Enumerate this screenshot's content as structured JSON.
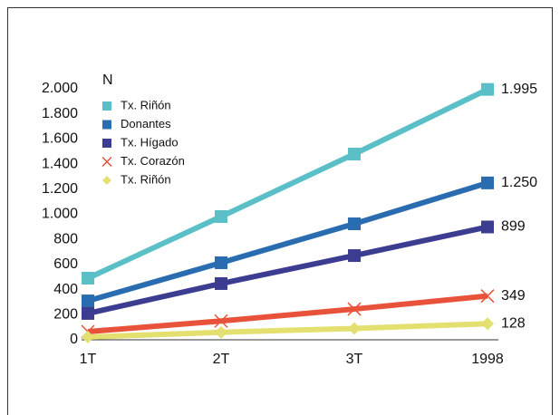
{
  "chart_data": {
    "type": "line",
    "y_label": "N",
    "categories": [
      "1T",
      "2T",
      "3T",
      "1998"
    ],
    "ylim": [
      0,
      2000
    ],
    "yticks": [
      0,
      200,
      400,
      600,
      800,
      {
        "value": 1000,
        "label": "1.000"
      },
      {
        "value": 1200,
        "label": "1.200"
      },
      {
        "value": 1400,
        "label": "1.400"
      },
      {
        "value": 1600,
        "label": "1.600"
      },
      {
        "value": 1800,
        "label": "1.800"
      },
      {
        "value": 2000,
        "label": "2.000"
      }
    ],
    "legend": "upper left",
    "series": [
      {
        "name": "Tx. Riñón",
        "color": "#5bbfc8",
        "marker": "square",
        "values": [
          491,
          982,
          1480,
          1995
        ],
        "value_labels": [
          null,
          null,
          null,
          "1.995"
        ]
      },
      {
        "name": "Donantes",
        "color": "#2a6cb0",
        "marker": "square",
        "values": [
          310,
          614,
          924,
          1250
        ],
        "value_labels": [
          null,
          null,
          null,
          "1.250"
        ]
      },
      {
        "name": "Tx. Hígado",
        "color": "#3c3c90",
        "marker": "square",
        "values": [
          210,
          448,
          671,
          899
        ],
        "value_labels": [
          null,
          null,
          null,
          "899"
        ]
      },
      {
        "name": "Tx. Corazón",
        "color": "#e8523a",
        "marker": "x",
        "values": [
          65,
          150,
          245,
          349
        ],
        "value_labels": [
          null,
          null,
          null,
          "349"
        ]
      },
      {
        "name": "Tx. Riñón",
        "color": "#e3e070",
        "marker": "diamond",
        "values": [
          22,
          60,
          90,
          128
        ],
        "value_labels": [
          null,
          null,
          null,
          "128"
        ]
      }
    ]
  }
}
